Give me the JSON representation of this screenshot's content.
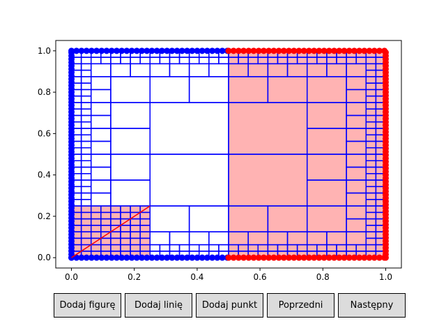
{
  "chart_data": {
    "type": "scatter",
    "xlim": [
      -0.05,
      1.05
    ],
    "ylim": [
      -0.05,
      1.05
    ],
    "x_ticks": [
      "0.0",
      "0.2",
      "0.4",
      "0.6",
      "0.8",
      "1.0"
    ],
    "y_ticks": [
      "0.0",
      "0.2",
      "0.4",
      "0.6",
      "0.8",
      "1.0"
    ],
    "grid": false,
    "colors": {
      "cells": "#0000ff",
      "highlight_fill": "#ffb3b3",
      "highlight_points": "#ff0000",
      "line": "#ff0000",
      "points": "#0000ff"
    },
    "highlight_regions": [
      {
        "x": [
          0.0,
          0.25
        ],
        "y": [
          0.0,
          0.25
        ]
      },
      {
        "x": [
          0.5,
          1.0
        ],
        "y": [
          0.0,
          1.0
        ]
      }
    ],
    "line_segment": {
      "x": [
        0.0,
        0.25
      ],
      "y": [
        0.0,
        0.25
      ]
    },
    "points": {
      "blue": "dense along x=0, y=0 (x 0–0.5), y=1 (x 0–0.5)",
      "red": "dense along x=1, y=0 (x 0.5–1), y=1 (x 0.5–1)"
    }
  },
  "buttons": [
    {
      "label": "Dodaj figurę"
    },
    {
      "label": "Dodaj linię"
    },
    {
      "label": "Dodaj punkt"
    },
    {
      "label": "Poprzedni"
    },
    {
      "label": "Następny"
    }
  ]
}
